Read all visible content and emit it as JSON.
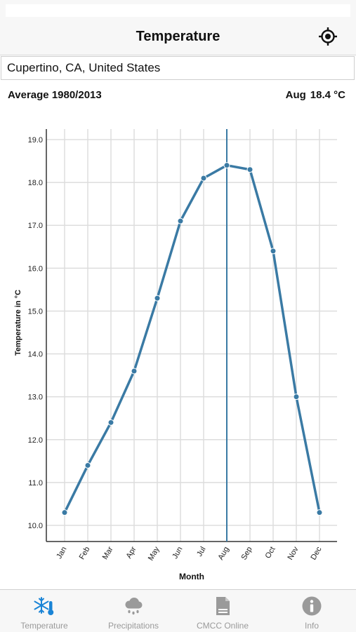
{
  "app": {
    "title": "Temperature"
  },
  "search": {
    "value": "Cupertino, CA, United States",
    "placeholder": ""
  },
  "summary": {
    "period": "Average 1980/2013",
    "selected_month": "Aug",
    "selected_value": "18.4 °C"
  },
  "chart_data": {
    "type": "line",
    "categories": [
      "Jan",
      "Feb",
      "Mar",
      "Apr",
      "May",
      "Jun",
      "Jul",
      "Aug",
      "Sep",
      "Oct",
      "Nov",
      "Dec"
    ],
    "values": [
      10.3,
      11.4,
      12.4,
      13.6,
      15.3,
      17.1,
      18.1,
      18.4,
      18.3,
      16.4,
      13.0,
      10.3
    ],
    "xlabel": "Month",
    "ylabel": "Temperature in °C",
    "ylim": [
      10.0,
      19.0
    ],
    "yticks": [
      "10.0",
      "11.0",
      "12.0",
      "13.0",
      "14.0",
      "15.0",
      "16.0",
      "17.0",
      "18.0",
      "19.0"
    ],
    "grid": true,
    "highlight_category": "Aug",
    "line_color": "#3a7aa4"
  },
  "tabs": [
    {
      "label": "Temperature",
      "icon": "snowflake-thermometer-icon",
      "active": true
    },
    {
      "label": "Precipitations",
      "icon": "rain-cloud-icon",
      "active": false
    },
    {
      "label": "CMCC Online",
      "icon": "document-icon",
      "active": false
    },
    {
      "label": "Info",
      "icon": "info-icon",
      "active": false
    }
  ],
  "colors": {
    "accent": "#1a84d6",
    "inactive": "#9a9a9a",
    "series": "#3a7aa4"
  }
}
